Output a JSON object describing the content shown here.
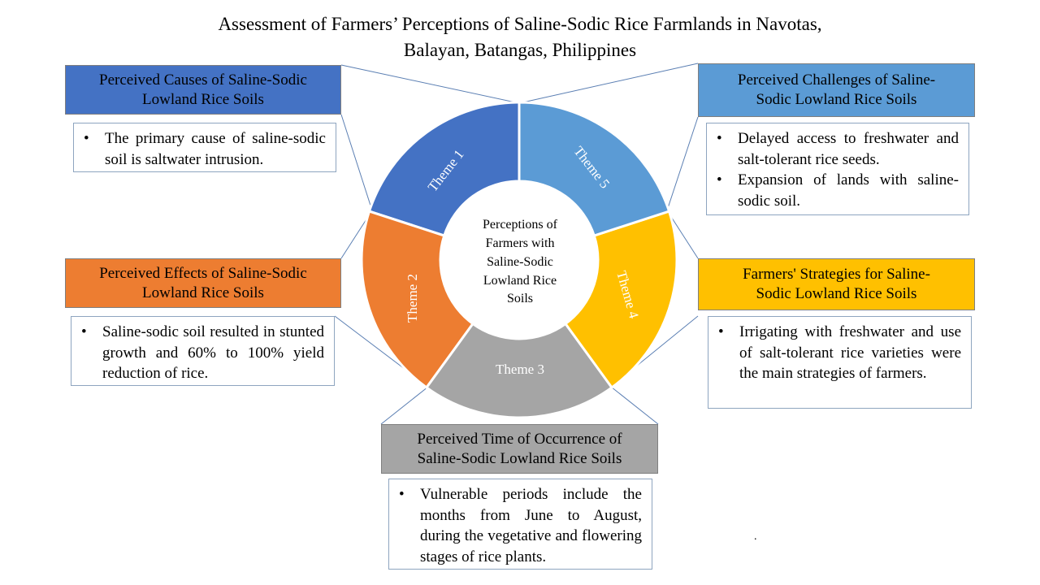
{
  "title": {
    "line1": "Assessment of Farmers’ Perceptions of Saline-Sodic Rice Farmlands in Navotas,",
    "line2": "Balayan, Batangas, Philippines"
  },
  "colors": {
    "theme1": "#4472c4",
    "theme2": "#ed7d31",
    "theme3": "#a5a5a5",
    "theme4": "#ffc000",
    "theme5": "#5b9bd5"
  },
  "center": {
    "lines": [
      "Perceptions of",
      "Farmers with",
      "Saline-Sodic",
      "Lowland Rice",
      "Soils"
    ]
  },
  "themes": [
    {
      "label": "Theme 1"
    },
    {
      "label": "Theme 2"
    },
    {
      "label": "Theme 3"
    },
    {
      "label": "Theme 4"
    },
    {
      "label": "Theme 5"
    }
  ],
  "causes": {
    "head": [
      "Perceived Causes of Saline-Sodic",
      "Lowland Rice Soils"
    ],
    "bullets": [
      "The primary cause of saline-sodic soil is saltwater intrusion."
    ]
  },
  "effects": {
    "head": [
      "Perceived Effects of Saline-Sodic",
      "Lowland Rice Soils"
    ],
    "bullets": [
      "Saline-sodic soil resulted in stunted growth and 60% to 100% yield reduction of rice."
    ]
  },
  "time": {
    "head": [
      "Perceived Time of Occurrence of",
      "Saline-Sodic Lowland Rice Soils"
    ],
    "bullets": [
      "Vulnerable periods include the months from June to August, during the vegetative and flowering stages of rice plants."
    ]
  },
  "strategies": {
    "head": [
      "Farmers' Strategies for Saline-",
      "Sodic Lowland Rice Soils"
    ],
    "bullets": [
      "Irrigating with freshwater and use of salt-tolerant rice varieties were the main strategies of farmers."
    ]
  },
  "challenges": {
    "head": [
      "Perceived Challenges of Saline-",
      "Sodic Lowland Rice Soils"
    ],
    "bullets": [
      "Delayed access to freshwater and salt-tolerant rice seeds.",
      "Expansion of lands with saline-sodic soil."
    ]
  },
  "footnote": "."
}
